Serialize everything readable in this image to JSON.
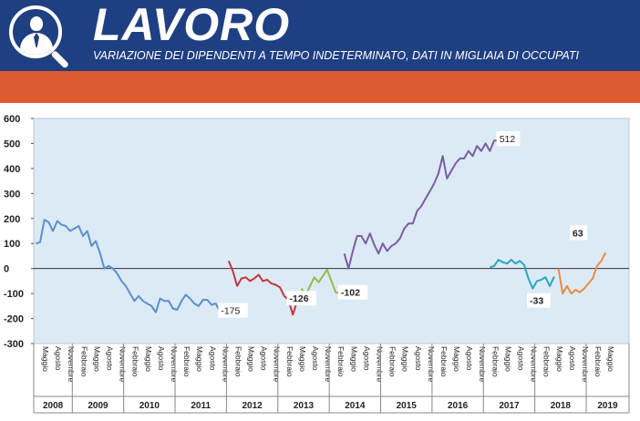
{
  "header": {
    "logo_icon": "worker-magnifier-icon",
    "title": "LAVORO",
    "subtitle": "VARIAZIONE DEI DIPENDENTI A TEMPO INDETERMINATO, DATI IN MIGLIAIA DI OCCUPATI"
  },
  "colors": {
    "header_bg": "#1f3f83",
    "band_bg": "#de5a31",
    "plot_bg": "#dceaf6",
    "series_2008_2011": "#5b8ed1",
    "series_2012": "#c0393b",
    "series_2013": "#94bd4a",
    "series_2014_2016": "#7a5ea3",
    "series_2017": "#2aa6c0",
    "series_2018_2019": "#f08a3c"
  },
  "chart_data": {
    "type": "line",
    "ylim": [
      -300,
      600
    ],
    "yticks": [
      -300,
      -200,
      -100,
      0,
      100,
      200,
      300,
      400,
      500,
      600
    ],
    "ytick_labels": [
      "-300",
      "-200",
      "-100",
      "0",
      "100",
      "200",
      "300",
      "400",
      "500",
      "600"
    ],
    "grid": false,
    "xlabel": "",
    "ylabel": "",
    "month_labels": [
      "Febbraio",
      "Maggio",
      "Agosto",
      "Novembre"
    ],
    "years": [
      {
        "year": "2008",
        "months": [
          "Maggio",
          "Agosto",
          "Novembre"
        ]
      },
      {
        "year": "2009",
        "months": [
          "Febbraio",
          "Maggio",
          "Agosto",
          "Novembre"
        ]
      },
      {
        "year": "2010",
        "months": [
          "Febbraio",
          "Maggio",
          "Agosto",
          "Novembre"
        ]
      },
      {
        "year": "2011",
        "months": [
          "Febbraio",
          "Maggio",
          "Agosto",
          "Novembre"
        ]
      },
      {
        "year": "2012",
        "months": [
          "Febbraio",
          "Maggio",
          "Agosto",
          "Novembre"
        ]
      },
      {
        "year": "2013",
        "months": [
          "Febbraio",
          "Maggio",
          "Agosto",
          "Novembre"
        ]
      },
      {
        "year": "2014",
        "months": [
          "Febbraio",
          "Maggio",
          "Agosto",
          "Novembre"
        ]
      },
      {
        "year": "2015",
        "months": [
          "Febbraio",
          "Maggio",
          "Agosto",
          "Novembre"
        ]
      },
      {
        "year": "2016",
        "months": [
          "Febbraio",
          "Maggio",
          "Agosto",
          "Novembre"
        ]
      },
      {
        "year": "2017",
        "months": [
          "Febbraio",
          "Maggio",
          "Agosto",
          "Novembre"
        ]
      },
      {
        "year": "2018",
        "months": [
          "Febbraio",
          "Maggio",
          "Agosto",
          "Novembre"
        ]
      },
      {
        "year": "2019",
        "months": [
          "Febbraio",
          "Maggio"
        ]
      }
    ],
    "series": [
      {
        "id": "s2008_2011",
        "color": "#5b8ed1",
        "start": "2008-04",
        "values": [
          100,
          105,
          195,
          185,
          150,
          190,
          175,
          170,
          150,
          160,
          170,
          130,
          150,
          90,
          110,
          60,
          0,
          10,
          0,
          -20,
          -50,
          -70,
          -100,
          -130,
          -110,
          -130,
          -140,
          -150,
          -175,
          -120,
          -130,
          -130,
          -160,
          -165,
          -130,
          -105,
          -120,
          -140,
          -150,
          -125,
          -125,
          -145,
          -140,
          -175
        ]
      },
      {
        "id": "s2012",
        "color": "#c0393b",
        "start": "2012-01",
        "values": [
          30,
          -10,
          -70,
          -40,
          -35,
          -50,
          -40,
          -25,
          -50,
          -45,
          -60,
          -65,
          -75,
          -110,
          -126,
          -185,
          -130
        ]
      },
      {
        "id": "s2013",
        "color": "#94bd4a",
        "start": "2013-06",
        "values": [
          -80,
          -105,
          -70,
          -35,
          -55,
          -30,
          -5,
          -50,
          -95,
          -102
        ]
      },
      {
        "id": "s2014_2016",
        "color": "#7a5ea3",
        "start": "2014-04",
        "values": [
          60,
          0,
          70,
          130,
          130,
          100,
          140,
          95,
          60,
          100,
          70,
          90,
          100,
          120,
          160,
          180,
          180,
          230,
          250,
          280,
          310,
          340,
          380,
          450,
          360,
          390,
          420,
          440,
          440,
          470,
          450,
          490,
          470,
          500,
          470,
          512,
          512
        ]
      },
      {
        "id": "s2017",
        "color": "#2aa6c0",
        "start": "2017-02",
        "values": [
          5,
          10,
          35,
          25,
          20,
          35,
          20,
          30,
          15,
          -40,
          -80,
          -50,
          -45,
          -35,
          -70,
          -33
        ]
      },
      {
        "id": "s2018_2019",
        "color": "#f08a3c",
        "start": "2018-06",
        "values": [
          0,
          -100,
          -70,
          -100,
          -85,
          -95,
          -80,
          -60,
          -40,
          10,
          30,
          63
        ]
      }
    ],
    "data_labels": [
      {
        "text": "-175",
        "series": "s2008_2011",
        "date": "2011-11",
        "value": -175
      },
      {
        "text": "-126",
        "series": "s2012",
        "date": "2013-03",
        "value": -126
      },
      {
        "text": "-102",
        "series": "s2013",
        "date": "2014-03",
        "value": -102
      },
      {
        "text": "512",
        "series": "s2014_2016",
        "date": "2017-04",
        "value": 512
      },
      {
        "text": "-33",
        "series": "s2017",
        "date": "2018-05",
        "value": -33
      },
      {
        "text": "63",
        "series": "s2018_2019",
        "date": "2019-05",
        "value": 63
      }
    ]
  }
}
